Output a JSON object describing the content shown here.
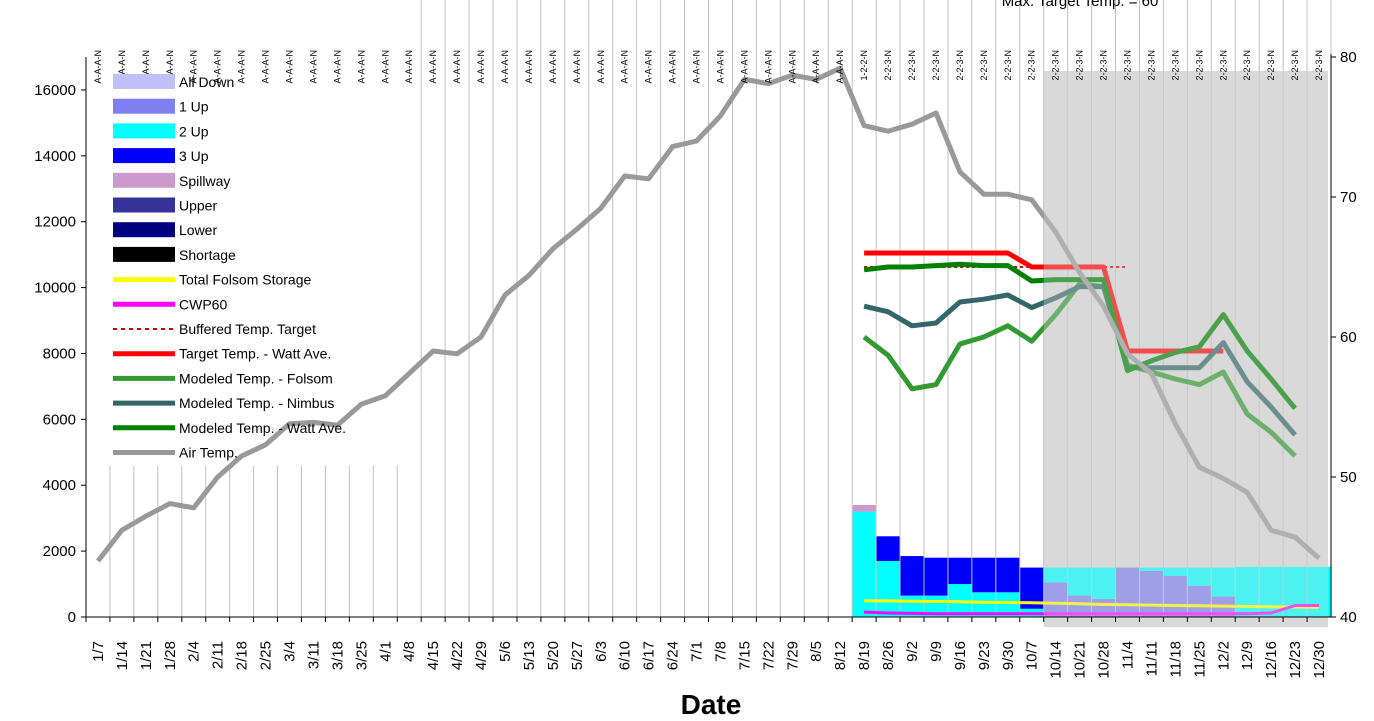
{
  "chart_data": {
    "type": "bar",
    "xlabel": "Date",
    "note": "Max. Target Temp. = 60",
    "categories": [
      "1/7",
      "1/14",
      "1/21",
      "1/28",
      "2/4",
      "2/11",
      "2/18",
      "2/25",
      "3/4",
      "3/11",
      "3/18",
      "3/25",
      "4/1",
      "4/8",
      "4/15",
      "4/22",
      "4/29",
      "5/6",
      "5/13",
      "5/20",
      "5/27",
      "6/3",
      "6/10",
      "6/17",
      "6/24",
      "7/1",
      "7/8",
      "7/15",
      "7/22",
      "7/29",
      "8/5",
      "8/12",
      "8/19",
      "8/26",
      "9/2",
      "9/9",
      "9/16",
      "9/23",
      "9/30",
      "10/7",
      "10/14",
      "10/21",
      "10/28",
      "11/4",
      "11/11",
      "11/18",
      "11/25",
      "12/2",
      "12/9",
      "12/16",
      "12/23",
      "12/30"
    ],
    "top_labels": [
      "A-A-A-N",
      "A-A-A-N",
      "A-A-A-N",
      "A-A-A-N",
      "A-A-A-N",
      "A-A-A-N",
      "A-A-A-N",
      "A-A-A-N",
      "A-A-A-N",
      "A-A-A-N",
      "A-A-A-N",
      "A-A-A-N",
      "A-A-A-N",
      "A-A-A-N",
      "A-A-A-N",
      "A-A-A-N",
      "A-A-A-N",
      "A-A-A-N",
      "A-A-A-N",
      "A-A-A-N",
      "A-A-A-N",
      "A-A-A-N",
      "A-A-A-N",
      "A-A-A-N",
      "A-A-A-N",
      "A-A-A-N",
      "A-A-A-N",
      "A-A-A-N",
      "A-A-A-N",
      "A-A-A-N",
      "A-A-A-N",
      "A-A-A-N",
      "1-2-2-N",
      "2-2-3-N",
      "2-2-3-N",
      "2-2-3-N",
      "2-2-3-N",
      "2-2-3-N",
      "2-2-3-N",
      "2-2-3-N",
      "2-2-3-N",
      "2-2-3-N",
      "2-2-3-N",
      "2-2-3-N",
      "2-2-3-N",
      "2-2-3-N",
      "2-2-3-N",
      "2-2-3-N",
      "2-2-3-N",
      "2-2-3-N",
      "2-2-3-N",
      "2-2-3-N"
    ],
    "y_left": {
      "min": 0,
      "max": 17000,
      "ticks": [
        0,
        2000,
        4000,
        6000,
        8000,
        10000,
        12000,
        14000,
        16000
      ]
    },
    "y_right": {
      "min": 40,
      "max": 80,
      "ticks": [
        40,
        50,
        60,
        70,
        80
      ]
    },
    "shaded_region": {
      "from": "10/14",
      "to": "12/30",
      "color": "#d9d9d9"
    },
    "bar_series": [
      {
        "name": "All Down",
        "color": "#c0c0f8",
        "values": [
          0,
          0,
          0,
          0,
          0,
          0,
          0,
          0,
          0,
          0,
          0,
          0,
          0,
          0,
          0,
          0,
          0,
          0,
          0,
          0,
          0,
          0,
          0,
          0,
          0,
          0,
          0,
          0,
          0,
          0,
          0,
          0,
          0,
          0,
          0,
          0,
          0,
          0,
          0,
          0,
          0,
          0,
          0,
          0,
          0,
          0,
          0,
          0,
          0,
          0,
          0,
          0
        ]
      },
      {
        "name": "1 Up",
        "color": "#8080f0",
        "values": [
          0,
          0,
          0,
          0,
          0,
          0,
          0,
          0,
          0,
          0,
          0,
          0,
          0,
          0,
          0,
          0,
          0,
          0,
          0,
          0,
          0,
          0,
          0,
          0,
          0,
          0,
          0,
          0,
          0,
          0,
          0,
          0,
          0,
          0,
          0,
          0,
          0,
          0,
          0,
          0,
          1050,
          650,
          550,
          1500,
          1400,
          1250,
          950,
          620,
          0,
          0,
          0,
          0
        ]
      },
      {
        "name": "2 Up",
        "color": "#00ffff",
        "values": [
          0,
          0,
          0,
          0,
          0,
          0,
          0,
          0,
          0,
          0,
          0,
          0,
          0,
          0,
          0,
          0,
          0,
          0,
          0,
          0,
          0,
          0,
          0,
          0,
          0,
          0,
          0,
          0,
          0,
          0,
          0,
          0,
          3200,
          1700,
          650,
          650,
          1000,
          750,
          750,
          250,
          450,
          850,
          950,
          0,
          100,
          250,
          550,
          880,
          1520,
          1520,
          1520,
          1520
        ]
      },
      {
        "name": "3 Up",
        "color": "#0000ff",
        "values": [
          0,
          0,
          0,
          0,
          0,
          0,
          0,
          0,
          0,
          0,
          0,
          0,
          0,
          0,
          0,
          0,
          0,
          0,
          0,
          0,
          0,
          0,
          0,
          0,
          0,
          0,
          0,
          0,
          0,
          0,
          0,
          0,
          0,
          750,
          1200,
          1150,
          800,
          1050,
          1050,
          1250,
          0,
          0,
          0,
          0,
          0,
          0,
          0,
          0,
          0,
          0,
          0,
          0
        ]
      },
      {
        "name": "Spillway",
        "color": "#cc99cc",
        "values": [
          0,
          0,
          0,
          0,
          0,
          0,
          0,
          0,
          0,
          0,
          0,
          0,
          0,
          0,
          0,
          0,
          0,
          0,
          0,
          0,
          0,
          0,
          0,
          0,
          0,
          0,
          0,
          0,
          0,
          0,
          0,
          0,
          200,
          0,
          0,
          0,
          0,
          0,
          0,
          0,
          0,
          0,
          0,
          0,
          0,
          0,
          0,
          0,
          0,
          0,
          0,
          0
        ]
      },
      {
        "name": "Upper",
        "color": "#333399",
        "values": [
          0,
          0,
          0,
          0,
          0,
          0,
          0,
          0,
          0,
          0,
          0,
          0,
          0,
          0,
          0,
          0,
          0,
          0,
          0,
          0,
          0,
          0,
          0,
          0,
          0,
          0,
          0,
          0,
          0,
          0,
          0,
          0,
          0,
          0,
          0,
          0,
          0,
          0,
          0,
          0,
          0,
          0,
          0,
          0,
          0,
          0,
          0,
          0,
          0,
          0,
          0,
          0
        ]
      },
      {
        "name": "Lower",
        "color": "#000080",
        "values": [
          0,
          0,
          0,
          0,
          0,
          0,
          0,
          0,
          0,
          0,
          0,
          0,
          0,
          0,
          0,
          0,
          0,
          0,
          0,
          0,
          0,
          0,
          0,
          0,
          0,
          0,
          0,
          0,
          0,
          0,
          0,
          0,
          0,
          0,
          0,
          0,
          0,
          0,
          0,
          0,
          0,
          0,
          0,
          0,
          0,
          0,
          0,
          0,
          0,
          0,
          0,
          0
        ]
      },
      {
        "name": "Shortage",
        "color": "#000000",
        "values": [
          0,
          0,
          0,
          0,
          0,
          0,
          0,
          0,
          0,
          0,
          0,
          0,
          0,
          0,
          0,
          0,
          0,
          0,
          0,
          0,
          0,
          0,
          0,
          0,
          0,
          0,
          0,
          0,
          0,
          0,
          0,
          0,
          0,
          0,
          0,
          0,
          0,
          0,
          0,
          0,
          0,
          0,
          0,
          0,
          0,
          0,
          0,
          0,
          0,
          0,
          0,
          0
        ]
      }
    ],
    "line_series": [
      {
        "name": "Total Folsom Storage",
        "color": "#ffff00",
        "axis": "left",
        "style": "solid",
        "width": 3,
        "start": 32,
        "values": [
          490,
          490,
          480,
          470,
          460,
          450,
          440,
          430,
          420,
          400,
          380,
          370,
          360,
          350,
          340,
          330,
          320,
          310,
          300,
          290
        ]
      },
      {
        "name": "CWP60",
        "color": "#ff00ff",
        "axis": "left",
        "style": "solid",
        "width": 3,
        "start": 32,
        "values": [
          150,
          120,
          110,
          100,
          100,
          100,
          100,
          100,
          100,
          100,
          100,
          100,
          100,
          100,
          100,
          100,
          100,
          120,
          350,
          350
        ]
      },
      {
        "name": "Buffered Temp. Target",
        "color": "#cc0000",
        "axis": "right",
        "style": "dotted",
        "width": 2,
        "start": 32,
        "values": [
          65,
          65,
          65,
          65,
          65,
          65,
          65,
          65,
          65,
          65,
          65,
          65
        ]
      },
      {
        "name": "Target Temp. - Watt Ave.",
        "color": "#ff0000",
        "axis": "right",
        "style": "solid",
        "width": 5,
        "start": 32,
        "values": [
          66,
          66,
          66,
          66,
          66,
          66,
          66,
          65,
          65,
          65,
          65,
          59,
          59,
          59,
          59,
          59
        ]
      },
      {
        "name": "Modeled Temp. - Folsom",
        "color": "#339933",
        "axis": "right",
        "style": "solid",
        "width": 5,
        "start": 32,
        "values": [
          60,
          58.7,
          56.3,
          56.6,
          59.5,
          60,
          60.8,
          59.7,
          61.6,
          63.8,
          63.6,
          58,
          57.5,
          57,
          56.6,
          57.5,
          54.5,
          53.2,
          51.5
        ]
      },
      {
        "name": "Modeled Temp. - Nimbus",
        "color": "#336666",
        "axis": "right",
        "style": "solid",
        "width": 5,
        "start": 32,
        "values": [
          62.2,
          61.8,
          60.8,
          61,
          62.5,
          62.7,
          63,
          62.1,
          62.8,
          63.6,
          63.6,
          57.8,
          57.8,
          57.8,
          57.8,
          59.6,
          56.8,
          55,
          53
        ]
      },
      {
        "name": "Modeled Temp. - Watt Ave.",
        "color": "#008000",
        "axis": "right",
        "style": "solid",
        "width": 5,
        "start": 32,
        "values": [
          64.8,
          65,
          65,
          65.1,
          65.2,
          65.1,
          65.1,
          64,
          64.1,
          64.1,
          64.1,
          57.6,
          58.3,
          58.9,
          59.3,
          61.6,
          59,
          57,
          54.9
        ]
      },
      {
        "name": "Air Temp.",
        "color": "#999999",
        "axis": "right",
        "style": "solid",
        "width": 5,
        "start": 0,
        "values": [
          44,
          46.2,
          47.2,
          48.1,
          47.8,
          50,
          51.5,
          52.3,
          53.8,
          53.9,
          53.7,
          55.2,
          55.8,
          57.4,
          59,
          58.8,
          60,
          63,
          64.4,
          66.3,
          67.7,
          69.2,
          71.5,
          71.3,
          73.6,
          74,
          75.8,
          78.4,
          78.1,
          78.7,
          78.4,
          79.2,
          75.1,
          74.7,
          75.2,
          76,
          71.8,
          70.2,
          70.2,
          69.8,
          67.5,
          64.6,
          62.2,
          58.8,
          57.4,
          53.8,
          50.7,
          49.9,
          48.9,
          46.2,
          45.7,
          44.2
        ]
      }
    ]
  }
}
